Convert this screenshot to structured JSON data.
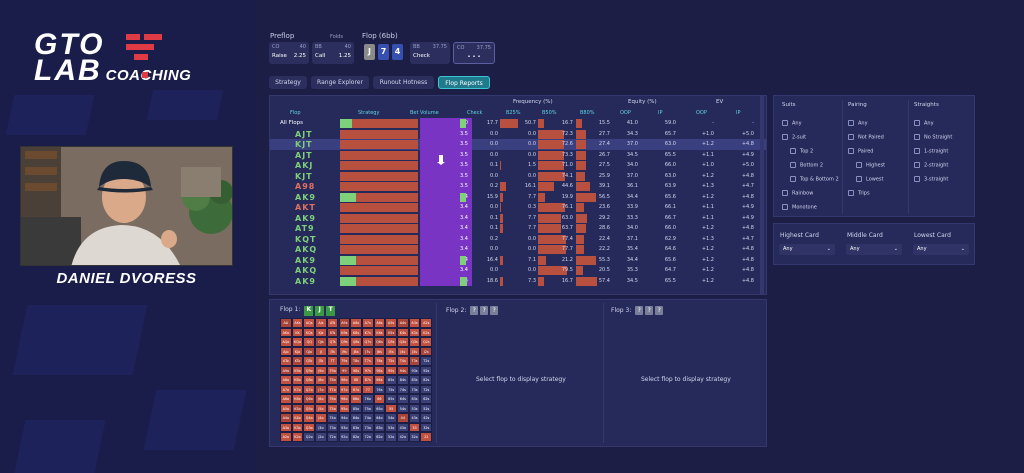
{
  "brand": {
    "line1": "GTO",
    "line2": "LAB",
    "coaching": "COACHING"
  },
  "coach": {
    "name": "DANIEL DVORESS"
  },
  "preflop": {
    "label": "Preflop",
    "folds_label": "Folds",
    "cards": [
      {
        "pos": "CO",
        "stack": "40",
        "action": "Raise",
        "size": "2.25"
      },
      {
        "pos": "BB",
        "stack": "40",
        "action": "Call",
        "size": "1.25"
      }
    ]
  },
  "flop_header": {
    "label": "Flop (6bb)",
    "cards": [
      "J",
      "7",
      "4"
    ],
    "card_colors": [
      "#8a8a8a",
      "#3550b0",
      "#3550b0"
    ],
    "bb": {
      "pos": "BB",
      "stack": "37.75",
      "action": "Check"
    },
    "co": {
      "pos": "CO",
      "stack": "37.75",
      "action": "• • •"
    }
  },
  "tabs": [
    {
      "label": "Strategy"
    },
    {
      "label": "Range Explorer"
    },
    {
      "label": "Runout Hotness"
    },
    {
      "label": "Flop Reports"
    }
  ],
  "table": {
    "group_headers": {
      "frequency": "Frequency (%)",
      "equity": "Equity (%)",
      "ev": "EV"
    },
    "columns": {
      "flop": "Flop",
      "strategy": "Strategy",
      "bet_volume": "Bet Volume",
      "check": "Check",
      "b25": "B25%",
      "b50": "B50%",
      "b80": "B80%",
      "oop_eq": "OOP",
      "ip_eq": "IP",
      "oop_ev": "OOP",
      "ip_ev": "IP"
    },
    "rows": [
      {
        "flop": "All Flops",
        "color": "#ffffff",
        "green": 0.15,
        "bv": "2.0",
        "check": "17.7",
        "b25": "50.7",
        "b50": "16.7",
        "b80": "15.5",
        "oop_eq": "41.0",
        "ip_eq": "59.0",
        "oop_ev": "-",
        "ip_ev": "-"
      },
      {
        "flop": "AJT",
        "color": "#7fd07a",
        "green": 0.0,
        "bv": "3.5",
        "check": "0.0",
        "b25": "0.0",
        "b50": "72.3",
        "b80": "27.7",
        "oop_eq": "34.3",
        "ip_eq": "65.7",
        "oop_ev": "+1.0",
        "ip_ev": "+5.0"
      },
      {
        "flop": "KJT",
        "color": "#7fd07a",
        "green": 0.0,
        "bv": "3.5",
        "check": "0.0",
        "b25": "0.0",
        "b50": "72.6",
        "b80": "27.4",
        "oop_eq": "37.0",
        "ip_eq": "63.0",
        "oop_ev": "+1.2",
        "ip_ev": "+4.8"
      },
      {
        "flop": "AJT",
        "color": "#7fd07a",
        "green": 0.0,
        "bv": "3.5",
        "check": "0.0",
        "b25": "0.0",
        "b50": "73.3",
        "b80": "26.7",
        "oop_eq": "34.5",
        "ip_eq": "65.5",
        "oop_ev": "+1.1",
        "ip_ev": "+4.9"
      },
      {
        "flop": "AKJ",
        "color": "#7fd07a",
        "green": 0.0,
        "bv": "3.5",
        "check": "0.1",
        "b25": "1.5",
        "b80": "27.5",
        "b50": "71.0",
        "oop_eq": "34.0",
        "ip_eq": "66.0",
        "oop_ev": "+1.0",
        "ip_ev": "+5.0"
      },
      {
        "flop": "KJT",
        "color": "#7fd07a",
        "green": 0.0,
        "bv": "3.5",
        "check": "0.0",
        "b25": "0.0",
        "b50": "74.1",
        "b80": "25.9",
        "oop_eq": "37.0",
        "ip_eq": "63.0",
        "oop_ev": "+1.2",
        "ip_ev": "+4.8"
      },
      {
        "flop": "A98",
        "color": "#e07060",
        "green": 0.0,
        "bv": "3.5",
        "check": "0.2",
        "b25": "16.1",
        "b50": "44.6",
        "b80": "39.1",
        "oop_eq": "36.1",
        "ip_eq": "63.9",
        "oop_ev": "+1.3",
        "ip_ev": "+4.7"
      },
      {
        "flop": "AK9",
        "color": "#7fd07a",
        "green": 0.2,
        "bv": "3.4",
        "check": "15.9",
        "b25": "7.7",
        "b50": "19.9",
        "b80": "56.5",
        "oop_eq": "34.4",
        "ip_eq": "65.6",
        "oop_ev": "+1.2",
        "ip_ev": "+4.8"
      },
      {
        "flop": "AKT",
        "color": "#e07060",
        "green": 0.0,
        "bv": "3.4",
        "check": "0.0",
        "b25": "0.3",
        "b50": "76.1",
        "b80": "23.6",
        "oop_eq": "33.9",
        "ip_eq": "66.1",
        "oop_ev": "+1.1",
        "ip_ev": "+4.9"
      },
      {
        "flop": "AK9",
        "color": "#7fd07a",
        "green": 0.0,
        "bv": "3.4",
        "check": "0.1",
        "b25": "7.7",
        "b50": "63.0",
        "b80": "29.2",
        "oop_eq": "33.3",
        "ip_eq": "66.7",
        "oop_ev": "+1.1",
        "ip_ev": "+4.9"
      },
      {
        "flop": "AT9",
        "color": "#7fd07a",
        "green": 0.0,
        "bv": "3.4",
        "check": "0.1",
        "b25": "7.7",
        "b50": "63.7",
        "b80": "28.6",
        "oop_eq": "34.0",
        "ip_eq": "66.0",
        "oop_ev": "+1.2",
        "ip_ev": "+4.8"
      },
      {
        "flop": "KQT",
        "color": "#7fd07a",
        "green": 0.0,
        "bv": "3.4",
        "check": "0.2",
        "b25": "0.0",
        "b50": "77.4",
        "b80": "22.4",
        "oop_eq": "37.1",
        "ip_eq": "62.9",
        "oop_ev": "+1.3",
        "ip_ev": "+4.7"
      },
      {
        "flop": "AKQ",
        "color": "#7fd07a",
        "green": 0.0,
        "bv": "3.4",
        "check": "0.0",
        "b25": "0.0",
        "b50": "77.7",
        "b80": "22.2",
        "oop_eq": "35.4",
        "ip_eq": "64.6",
        "oop_ev": "+1.2",
        "ip_ev": "+4.8"
      },
      {
        "flop": "AK9",
        "color": "#7fd07a",
        "green": 0.2,
        "bv": "3.4",
        "check": "16.4",
        "b25": "7.1",
        "b50": "21.2",
        "b80": "55.3",
        "oop_eq": "34.4",
        "ip_eq": "65.6",
        "oop_ev": "+1.2",
        "ip_ev": "+4.8"
      },
      {
        "flop": "AKQ",
        "color": "#7fd07a",
        "green": 0.0,
        "bv": "3.4",
        "check": "0.0",
        "b25": "0.0",
        "b50": "79.5",
        "b80": "20.5",
        "oop_eq": "35.3",
        "ip_eq": "64.7",
        "oop_ev": "+1.2",
        "ip_ev": "+4.8"
      },
      {
        "flop": "AK9",
        "color": "#7fd07a",
        "green": 0.2,
        "bv": "3.4",
        "check": "18.6",
        "b25": "7.3",
        "b50": "16.7",
        "b80": "57.4",
        "oop_eq": "34.5",
        "ip_eq": "65.5",
        "oop_ev": "+1.2",
        "ip_ev": "+4.8"
      }
    ]
  },
  "filters": {
    "suits": {
      "title": "Suits",
      "items": [
        "Any",
        "2-suit",
        "Top 2",
        "Bottom 2",
        "Top & Bottom 2",
        "Rainbow",
        "Monotone"
      ]
    },
    "pairing": {
      "title": "Pairing",
      "items": [
        "Any",
        "Not Paired",
        "Paired",
        "Highest",
        "Lowest",
        "Trips"
      ]
    },
    "straights": {
      "title": "Straights",
      "items": [
        "Any",
        "No Straight",
        "1-straight",
        "2-straight",
        "3-straight"
      ]
    },
    "cards": [
      {
        "title": "Highest Card",
        "value": "Any"
      },
      {
        "title": "Middle Card",
        "value": "Any"
      },
      {
        "title": "Lowest Card",
        "value": "Any"
      }
    ]
  },
  "bottom": {
    "flop1": {
      "label": "Flop 1:",
      "cards": [
        "K",
        "J",
        "T"
      ]
    },
    "flop2": {
      "label": "Flop 2:",
      "msg": "Select flop to display strategy"
    },
    "flop3": {
      "label": "Flop 3:",
      "msg": "Select flop to display strategy"
    },
    "range_labels": [
      "AA",
      "AKs",
      "AQs",
      "AJs",
      "ATs",
      "A9s",
      "A8s",
      "A7s",
      "A6s",
      "A5s",
      "A4s",
      "A3s",
      "A2s"
    ],
    "range_labels_full": [
      [
        "AA",
        "AKs",
        "AQs",
        "AJs",
        "ATs",
        "A9s",
        "A8s",
        "A7s",
        "A6s",
        "A5s",
        "A4s",
        "A3s",
        "A2s"
      ],
      [
        "AKo",
        "KK",
        "KQs",
        "KJs",
        "KTs",
        "K9s",
        "K8s",
        "K7s",
        "K6s",
        "K5s",
        "K4s",
        "K3s",
        "K2s"
      ],
      [
        "AQo",
        "KQo",
        "QQ",
        "QJs",
        "QTs",
        "Q9s",
        "Q8s",
        "Q7s",
        "Q6s",
        "Q5s",
        "Q4s",
        "Q3s",
        "Q2s"
      ],
      [
        "AJo",
        "KJo",
        "QJo",
        "JJ",
        "JTs",
        "J9s",
        "J8s",
        "J7s",
        "J6s",
        "J5s",
        "J4s",
        "J3s",
        "J2s"
      ],
      [
        "ATo",
        "KTo",
        "QTo",
        "JTo",
        "TT",
        "T9s",
        "T8s",
        "T7s",
        "T6s",
        "T5s",
        "T4s",
        "T3s",
        "T2s"
      ],
      [
        "A9o",
        "K9o",
        "Q9o",
        "J9o",
        "T9o",
        "99",
        "98s",
        "97s",
        "96s",
        "95s",
        "94s",
        "93s",
        "92s"
      ],
      [
        "A8o",
        "K8o",
        "Q8o",
        "J8o",
        "T8o",
        "98o",
        "88",
        "87s",
        "86s",
        "85s",
        "84s",
        "83s",
        "82s"
      ],
      [
        "A7o",
        "K7o",
        "Q7o",
        "J7o",
        "T7o",
        "97o",
        "87o",
        "77",
        "76s",
        "75s",
        "74s",
        "73s",
        "72s"
      ],
      [
        "A6o",
        "K6o",
        "Q6o",
        "J6o",
        "T6o",
        "96o",
        "86o",
        "76o",
        "66",
        "65s",
        "64s",
        "63s",
        "62s"
      ],
      [
        "A5o",
        "K5o",
        "Q5o",
        "J5o",
        "T5o",
        "95o",
        "85o",
        "75o",
        "65o",
        "55",
        "54s",
        "53s",
        "52s"
      ],
      [
        "A4o",
        "K4o",
        "Q4o",
        "J4o",
        "T4o",
        "94o",
        "84o",
        "74o",
        "64o",
        "54o",
        "44",
        "43s",
        "42s"
      ],
      [
        "A3o",
        "K3o",
        "Q3o",
        "J3o",
        "T3o",
        "93o",
        "83o",
        "73o",
        "63o",
        "53o",
        "43o",
        "33",
        "32s"
      ],
      [
        "A2o",
        "K2o",
        "Q2o",
        "J2o",
        "T2o",
        "92o",
        "82o",
        "72o",
        "62o",
        "52o",
        "42o",
        "32o",
        "22"
      ]
    ],
    "in_range_rows": [
      13,
      13,
      13,
      13,
      12,
      11,
      9,
      8,
      7,
      6,
      4,
      3,
      2
    ]
  },
  "colors": {
    "bet": "#b85040",
    "check": "#7fd07a",
    "volume": "#7a34c4",
    "accent": "#3fc4d6",
    "brand_red": "#e03a45"
  }
}
